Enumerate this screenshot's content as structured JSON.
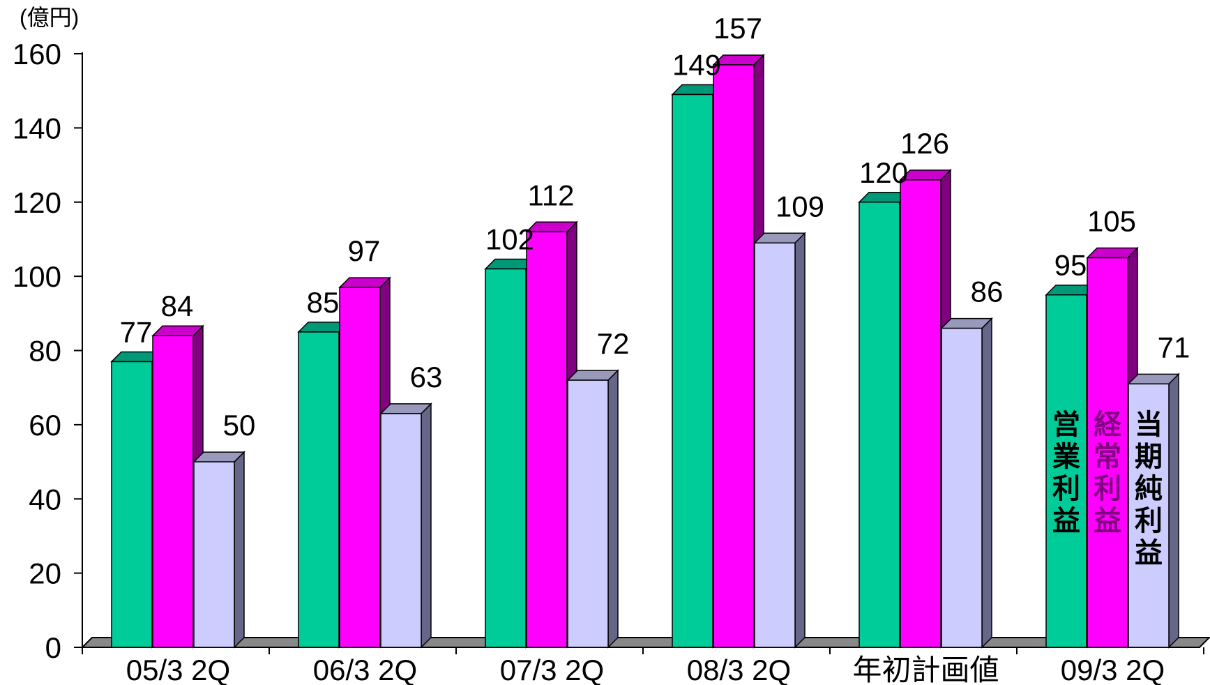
{
  "chart_data": {
    "type": "bar",
    "unit_label": "(億円)",
    "categories": [
      "05/3 2Q",
      "06/3 2Q",
      "07/3 2Q",
      "08/3 2Q",
      "年初計画値",
      "09/3 2Q"
    ],
    "ylim": [
      0,
      160
    ],
    "yticks": [
      0,
      20,
      40,
      60,
      80,
      100,
      120,
      140,
      160
    ],
    "grid": false,
    "series": [
      {
        "name": "営業利益",
        "values": [
          77,
          85,
          102,
          149,
          120,
          95
        ],
        "color": "#00cc99",
        "side_color": "#006655",
        "top_color": "#009977",
        "label_color": "#000000"
      },
      {
        "name": "経常利益",
        "values": [
          84,
          97,
          112,
          157,
          126,
          105
        ],
        "color": "#ff00ff",
        "side_color": "#800080",
        "top_color": "#cc00cc",
        "label_color": "#800080"
      },
      {
        "name": "当期純利益",
        "values": [
          50,
          63,
          72,
          109,
          86,
          71
        ],
        "color": "#ccccff",
        "side_color": "#666688",
        "top_color": "#9999bb",
        "label_color": "#000000"
      }
    ]
  }
}
